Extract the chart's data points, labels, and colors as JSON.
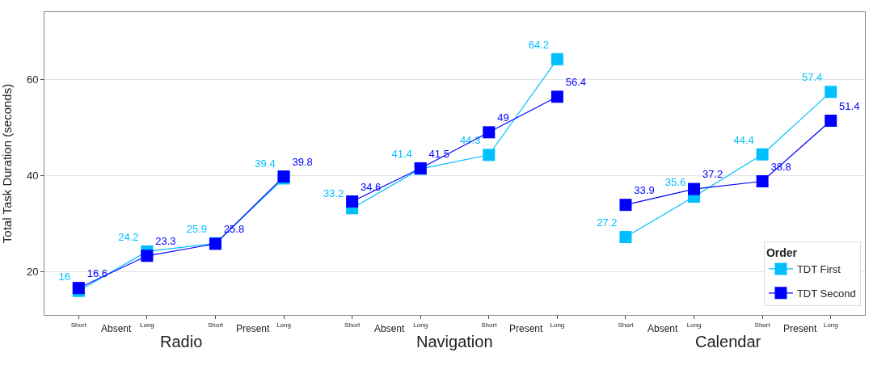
{
  "chart_data": {
    "type": "line",
    "ylabel": "Total Task Duration (seconds)",
    "legend_title": "Order",
    "categories": [
      "Short",
      "Long",
      "Short",
      "Long",
      "Short",
      "Long",
      "Short",
      "Long",
      "Short",
      "Long",
      "Short",
      "Long"
    ],
    "annotations": [
      "Absent",
      "Present",
      "Absent",
      "Present",
      "Absent",
      "Present",
      "Radio",
      "Navigation",
      "Calendar"
    ],
    "series": [
      {
        "name": "TDT First",
        "color": "#00bfff",
        "values": [
          16,
          24.2,
          25.9,
          39.4,
          33.2,
          41.4,
          44.3,
          64.2,
          27.2,
          35.6,
          44.4,
          57.4
        ]
      },
      {
        "name": "TDT Second",
        "color": "#0000ff",
        "values": [
          16.6,
          23.3,
          25.8,
          39.8,
          34.6,
          41.5,
          49,
          56.4,
          33.9,
          37.2,
          38.8,
          51.4
        ]
      }
    ],
    "ylim": [
      11,
      74
    ],
    "yticks": [
      20,
      40,
      60
    ],
    "grid": "y",
    "legend": "bottom right",
    "marker": "square",
    "line_style": "solid",
    "data_labels": true
  }
}
